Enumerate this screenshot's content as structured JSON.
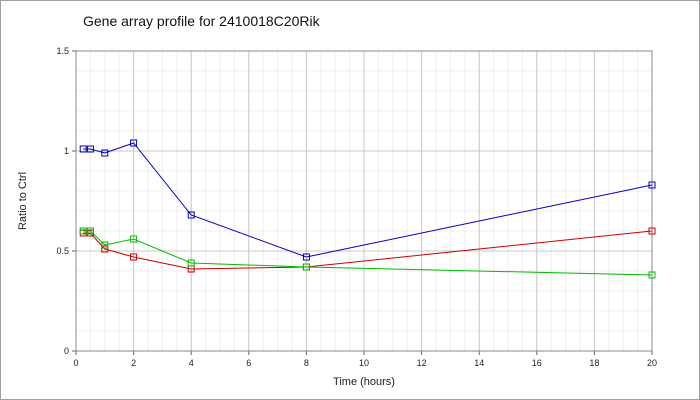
{
  "chart_data": {
    "type": "line",
    "title": "Gene array profile for 2410018C20Rik",
    "xlabel": "Time (hours)",
    "ylabel": "Ratio to Ctrl",
    "xlim": [
      0,
      20
    ],
    "ylim": [
      0,
      1.5
    ],
    "x_ticks": [
      "0",
      "2",
      "4",
      "6",
      "8",
      "10",
      "12",
      "14",
      "16",
      "18",
      "20"
    ],
    "y_ticks": [
      "0",
      "0.5",
      "1",
      "1.5"
    ],
    "grid": true,
    "series": [
      {
        "color": "#0000bb",
        "x": [
          0.25,
          0.5,
          1,
          2,
          4,
          8,
          20
        ],
        "y": [
          1.01,
          1.01,
          0.99,
          1.04,
          0.68,
          0.47,
          0.83
        ]
      },
      {
        "color": "#cc0000",
        "x": [
          0.25,
          0.5,
          1,
          2,
          4,
          8,
          20
        ],
        "y": [
          0.59,
          0.59,
          0.51,
          0.47,
          0.41,
          0.42,
          0.6
        ]
      },
      {
        "color": "#00bb00",
        "x": [
          0.25,
          0.5,
          1,
          2,
          4,
          8,
          20
        ],
        "y": [
          0.6,
          0.6,
          0.53,
          0.56,
          0.44,
          0.42,
          0.38
        ]
      }
    ]
  }
}
